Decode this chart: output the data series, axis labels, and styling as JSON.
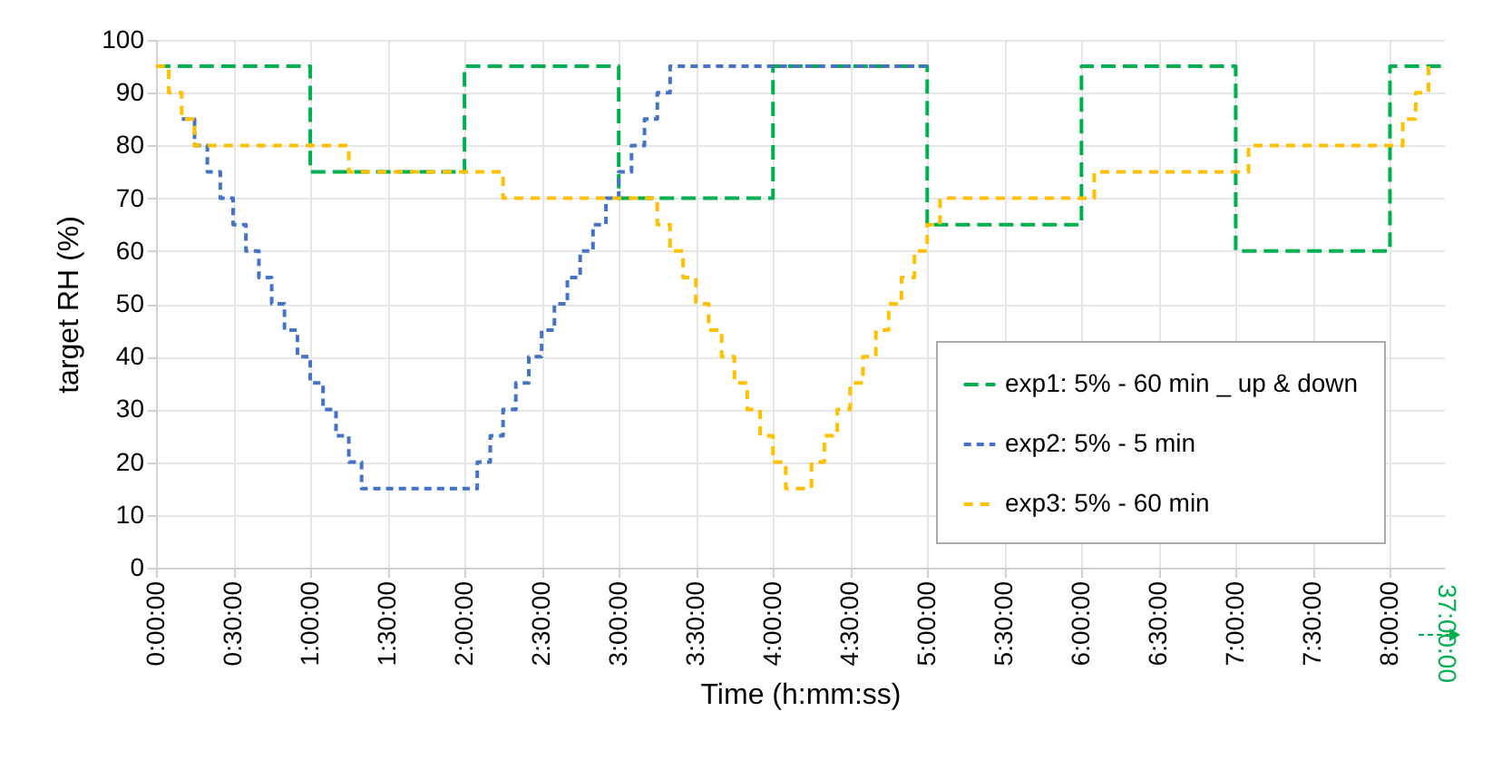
{
  "chart_data": {
    "type": "step",
    "xlabel": "Time (h:mm:ss)",
    "ylabel": "target RH (%)",
    "xlim": [
      0,
      8.35
    ],
    "ylim": [
      0,
      100
    ],
    "xticks": [
      {
        "value": 0,
        "label": "0:00:00"
      },
      {
        "value": 0.5,
        "label": "0:30:00"
      },
      {
        "value": 1,
        "label": "1:00:00"
      },
      {
        "value": 1.5,
        "label": "1:30:00"
      },
      {
        "value": 2,
        "label": "2:00:00"
      },
      {
        "value": 2.5,
        "label": "2:30:00"
      },
      {
        "value": 3,
        "label": "3:00:00"
      },
      {
        "value": 3.5,
        "label": "3:30:00"
      },
      {
        "value": 4,
        "label": "4:00:00"
      },
      {
        "value": 4.5,
        "label": "4:30:00"
      },
      {
        "value": 5,
        "label": "5:00:00"
      },
      {
        "value": 5.5,
        "label": "5:30:00"
      },
      {
        "value": 6,
        "label": "6:00:00"
      },
      {
        "value": 6.5,
        "label": "6:30:00"
      },
      {
        "value": 7,
        "label": "7:00:00"
      },
      {
        "value": 7.5,
        "label": "7:30:00"
      },
      {
        "value": 8,
        "label": "8:00:00"
      }
    ],
    "yticks": [
      0,
      10,
      20,
      30,
      40,
      50,
      60,
      70,
      80,
      90,
      100
    ],
    "grid": true,
    "legend": "right",
    "line_style": "dashed",
    "marker": "none",
    "annotations": [
      "37:00:00"
    ],
    "series": [
      {
        "name": "exp1: 5% - 60 min _ up & down",
        "color": "#00b050",
        "x": [
          0,
          1,
          2,
          3,
          4,
          5,
          6,
          7,
          8,
          8.33
        ],
        "values": [
          95,
          75,
          95,
          70,
          95,
          65,
          95,
          60,
          95,
          95
        ]
      },
      {
        "name": "exp2: 5% - 5 min",
        "color": "#4472c4",
        "x": [
          0.167,
          0.25,
          0.333,
          0.417,
          0.5,
          0.583,
          0.667,
          0.75,
          0.833,
          0.917,
          1,
          1.083,
          1.167,
          1.25,
          1.333,
          2.083,
          2.167,
          2.25,
          2.333,
          2.417,
          2.5,
          2.583,
          2.667,
          2.75,
          2.833,
          2.917,
          3,
          3.083,
          3.167,
          3.25,
          3.333,
          5
        ],
        "values": [
          85,
          80,
          75,
          70,
          65,
          60,
          55,
          50,
          45,
          40,
          35,
          30,
          25,
          20,
          15,
          20,
          25,
          30,
          35,
          40,
          45,
          50,
          55,
          60,
          65,
          70,
          75,
          80,
          85,
          90,
          95,
          95
        ]
      },
      {
        "name": "exp3: 5% - 60 min",
        "color": "#ffc000",
        "x": [
          0,
          0.083,
          0.167,
          0.25,
          1.25,
          2.25,
          3.25,
          3.333,
          3.417,
          3.5,
          3.583,
          3.667,
          3.75,
          3.833,
          3.917,
          4,
          4.083,
          4.25,
          4.333,
          4.417,
          4.5,
          4.583,
          4.667,
          4.75,
          4.833,
          4.917,
          5,
          5.083,
          6.083,
          7.083,
          8.083,
          8.167,
          8.25
        ],
        "values": [
          95,
          90,
          85,
          80,
          75,
          70,
          65,
          60,
          55,
          50,
          45,
          40,
          35,
          30,
          25,
          20,
          15,
          20,
          25,
          30,
          35,
          40,
          45,
          50,
          55,
          60,
          65,
          70,
          75,
          80,
          85,
          90,
          95
        ]
      }
    ]
  }
}
